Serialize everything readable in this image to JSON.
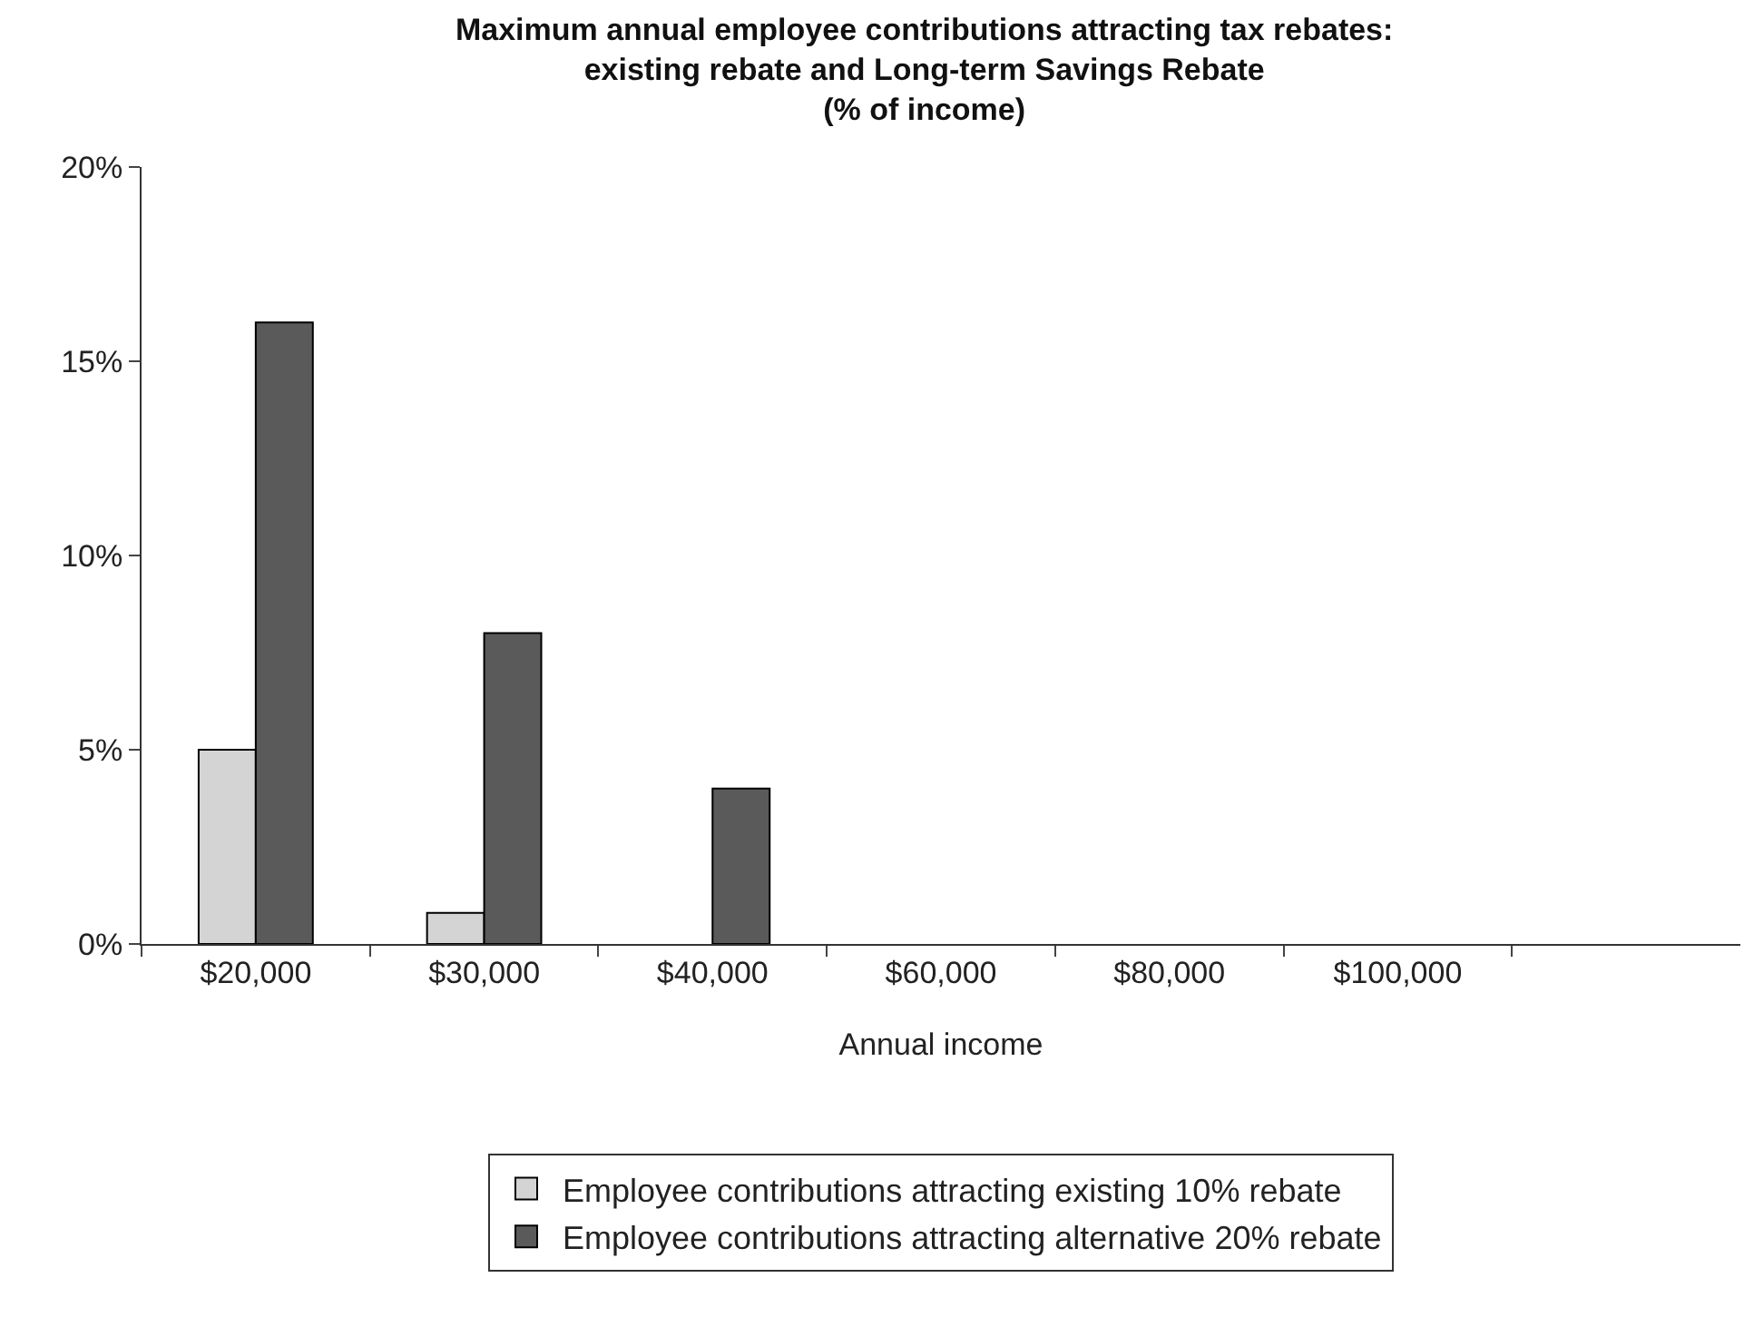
{
  "chart_data": {
    "type": "bar",
    "title": "Maximum annual employee contributions attracting tax rebates:\nexisting rebate and Long-term Savings Rebate\n(% of income)",
    "xlabel": "Annual income",
    "categories": [
      "$20,000",
      "$30,000",
      "$40,000",
      "$60,000",
      "$80,000",
      "$100,000",
      null
    ],
    "series": [
      {
        "name": "Employee contributions attracting existing 10% rebate",
        "color": "#d4d4d4",
        "values": [
          5,
          0.8,
          null,
          null,
          null,
          null,
          null
        ]
      },
      {
        "name": "Employee contributions attracting alternative 20% rebate",
        "color": "#5a5a5a",
        "values": [
          16,
          8,
          4,
          null,
          null,
          null,
          null
        ]
      }
    ],
    "ylim": [
      0,
      20
    ],
    "yticks": [
      {
        "value": 0,
        "label": "0%"
      },
      {
        "value": 5,
        "label": "5%"
      },
      {
        "value": 10,
        "label": "10%"
      },
      {
        "value": 15,
        "label": "15%"
      },
      {
        "value": 20,
        "label": "20%"
      }
    ],
    "grid": false,
    "legend": "bottom"
  }
}
